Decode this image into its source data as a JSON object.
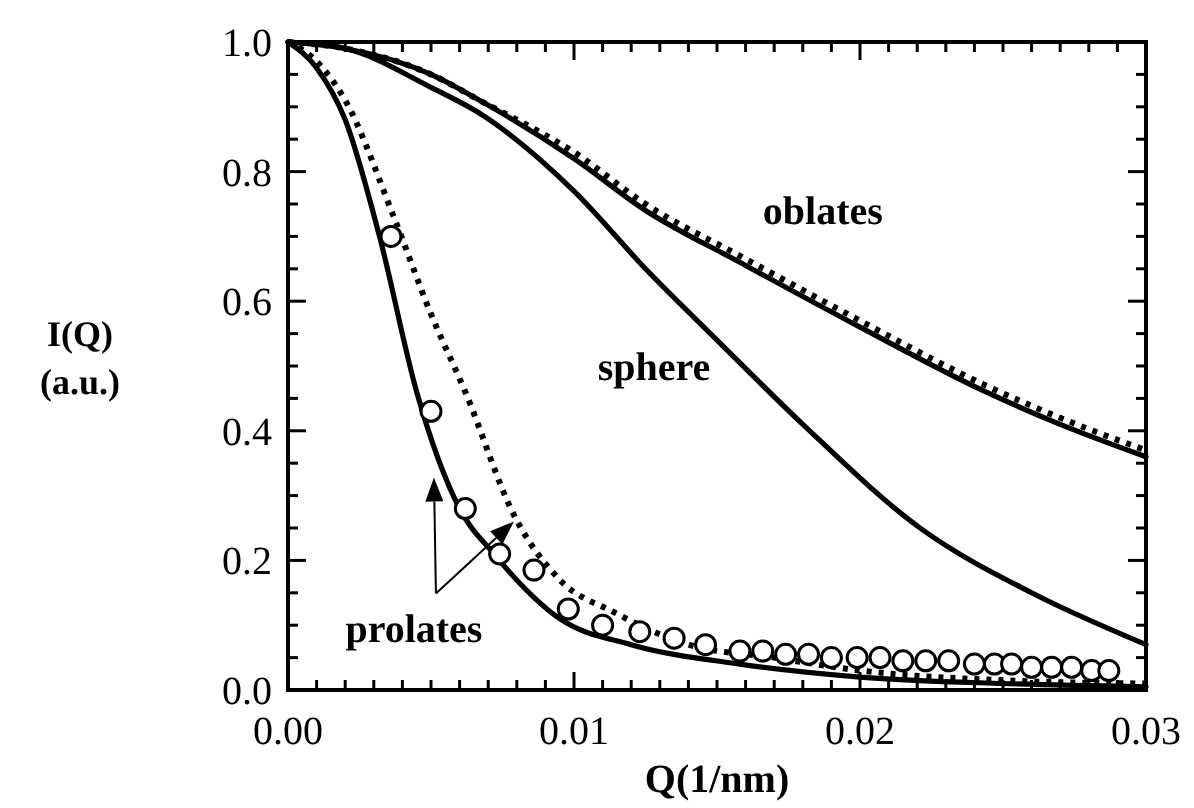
{
  "chart_data": {
    "type": "line",
    "xlabel": "Q(1/nm)",
    "ylabel": "I(Q)\n(a.u.)",
    "xlim": [
      0,
      0.03
    ],
    "ylim": [
      0,
      1
    ],
    "xticks": [
      {
        "value": 0,
        "label": "0.00"
      },
      {
        "value": 0.01,
        "label": "0.01"
      },
      {
        "value": 0.02,
        "label": "0.02"
      },
      {
        "value": 0.03,
        "label": "0.03"
      }
    ],
    "yticks": [
      {
        "value": 0,
        "label": "0.0"
      },
      {
        "value": 0.2,
        "label": "0.2"
      },
      {
        "value": 0.4,
        "label": "0.4"
      },
      {
        "value": 0.6,
        "label": "0.6"
      },
      {
        "value": 0.8,
        "label": "0.8"
      },
      {
        "value": 1,
        "label": "1.0"
      }
    ],
    "grid": false,
    "series": [
      {
        "type": "line",
        "color": "#000000",
        "line_style": "solid",
        "marker": "none",
        "x": [
          0,
          0.002,
          0.005,
          0.0067,
          0.01,
          0.0125,
          0.0158,
          0.02,
          0.0244,
          0.027,
          0.03
        ],
        "values": [
          1,
          0.99,
          0.95,
          0.91,
          0.82,
          0.74,
          0.66,
          0.56,
          0.46,
          0.41,
          0.36
        ]
      },
      {
        "type": "line",
        "color": "#000000",
        "line_style": "dotted",
        "marker": "none",
        "x": [
          0,
          0.002,
          0.005,
          0.0067,
          0.01,
          0.0125,
          0.0158,
          0.02,
          0.0244,
          0.027,
          0.03
        ],
        "values": [
          1,
          0.99,
          0.95,
          0.91,
          0.83,
          0.75,
          0.67,
          0.57,
          0.47,
          0.42,
          0.37
        ]
      },
      {
        "type": "line",
        "color": "#000000",
        "line_style": "solid",
        "marker": "none",
        "x": [
          0,
          0.002,
          0.005,
          0.0067,
          0.01,
          0.0125,
          0.015,
          0.018,
          0.0221,
          0.026,
          0.03
        ],
        "values": [
          1,
          0.99,
          0.93,
          0.89,
          0.77,
          0.65,
          0.54,
          0.41,
          0.25,
          0.15,
          0.07
        ]
      },
      {
        "type": "line",
        "color": "#000000",
        "line_style": "solid",
        "marker": "none",
        "x": [
          0,
          0.001,
          0.002,
          0.0032,
          0.0045,
          0.006,
          0.0072,
          0.0095,
          0.012,
          0.0158,
          0.02,
          0.025,
          0.03
        ],
        "values": [
          1,
          0.96,
          0.88,
          0.7,
          0.46,
          0.28,
          0.21,
          0.11,
          0.07,
          0.04,
          0.02,
          0.01,
          0.005
        ]
      },
      {
        "type": "line",
        "color": "#000000",
        "line_style": "dotted",
        "marker": "none",
        "x": [
          0,
          0.001,
          0.002,
          0.0037,
          0.005,
          0.0062,
          0.0079,
          0.0095,
          0.0114,
          0.014,
          0.017,
          0.02,
          0.025,
          0.03
        ],
        "values": [
          1,
          0.97,
          0.91,
          0.73,
          0.58,
          0.46,
          0.27,
          0.17,
          0.12,
          0.07,
          0.05,
          0.03,
          0.015,
          0.01
        ]
      },
      {
        "type": "scatter",
        "color": "#000000",
        "marker": "circle",
        "x": [
          0.0036,
          0.005,
          0.0062,
          0.0074,
          0.0086,
          0.0098,
          0.011,
          0.0123,
          0.0135,
          0.0146,
          0.0158,
          0.0166,
          0.0174,
          0.0182,
          0.019,
          0.0199,
          0.0207,
          0.0215,
          0.0223,
          0.0231,
          0.024,
          0.0247,
          0.0253,
          0.026,
          0.0267,
          0.0274,
          0.0281,
          0.0287
        ],
        "values": [
          0.7,
          0.43,
          0.28,
          0.21,
          0.185,
          0.125,
          0.1,
          0.09,
          0.08,
          0.07,
          0.06,
          0.06,
          0.055,
          0.055,
          0.05,
          0.05,
          0.05,
          0.045,
          0.045,
          0.045,
          0.04,
          0.04,
          0.04,
          0.035,
          0.035,
          0.035,
          0.03,
          0.03
        ]
      }
    ],
    "annotations": [
      "oblates",
      "sphere",
      {
        "text": "prolates",
        "x": 0.0079,
        "y": 0.26
      }
    ]
  }
}
